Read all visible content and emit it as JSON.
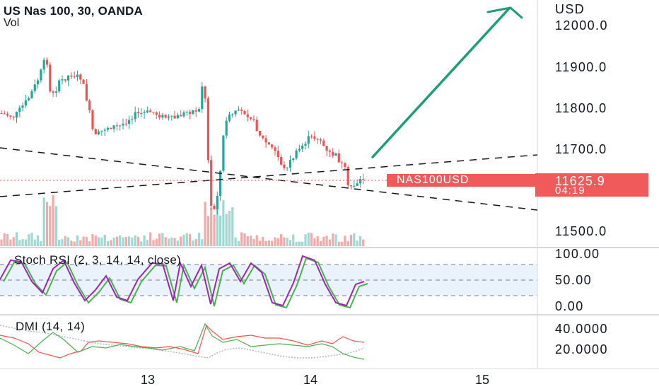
{
  "header": {
    "title": "US Nas 100, 30, OANDA",
    "volume_label": "Vol"
  },
  "price_axis": {
    "currency": "USD",
    "ticks": [
      "12000.0",
      "11900.0",
      "11800.0",
      "11700.0",
      "11500.0"
    ],
    "current_price": "11625.9",
    "countdown": "04:19"
  },
  "symbol_tag": "NAS100USD",
  "colors": {
    "up": "#26a69a",
    "down": "#ef5350",
    "accent": "#f15a5a",
    "arrow": "#1e9e76",
    "stoch_k": "#9c27b0",
    "stoch_d": "#4caf50",
    "dmi_plus": "#4caf50",
    "dmi_minus": "#ef5350",
    "adx": "#b2b5be"
  },
  "indicators": {
    "stoch_rsi": {
      "label": "Stoch RSI (2, 3, 14, 14, close)",
      "ticks": [
        "100.00",
        "50.00",
        "0.00"
      ]
    },
    "dmi": {
      "label": "DMI (14, 14)",
      "ticks": [
        "40.0000",
        "20.0000"
      ]
    }
  },
  "time_axis": {
    "labels": [
      "13",
      "14",
      "15"
    ]
  }
}
